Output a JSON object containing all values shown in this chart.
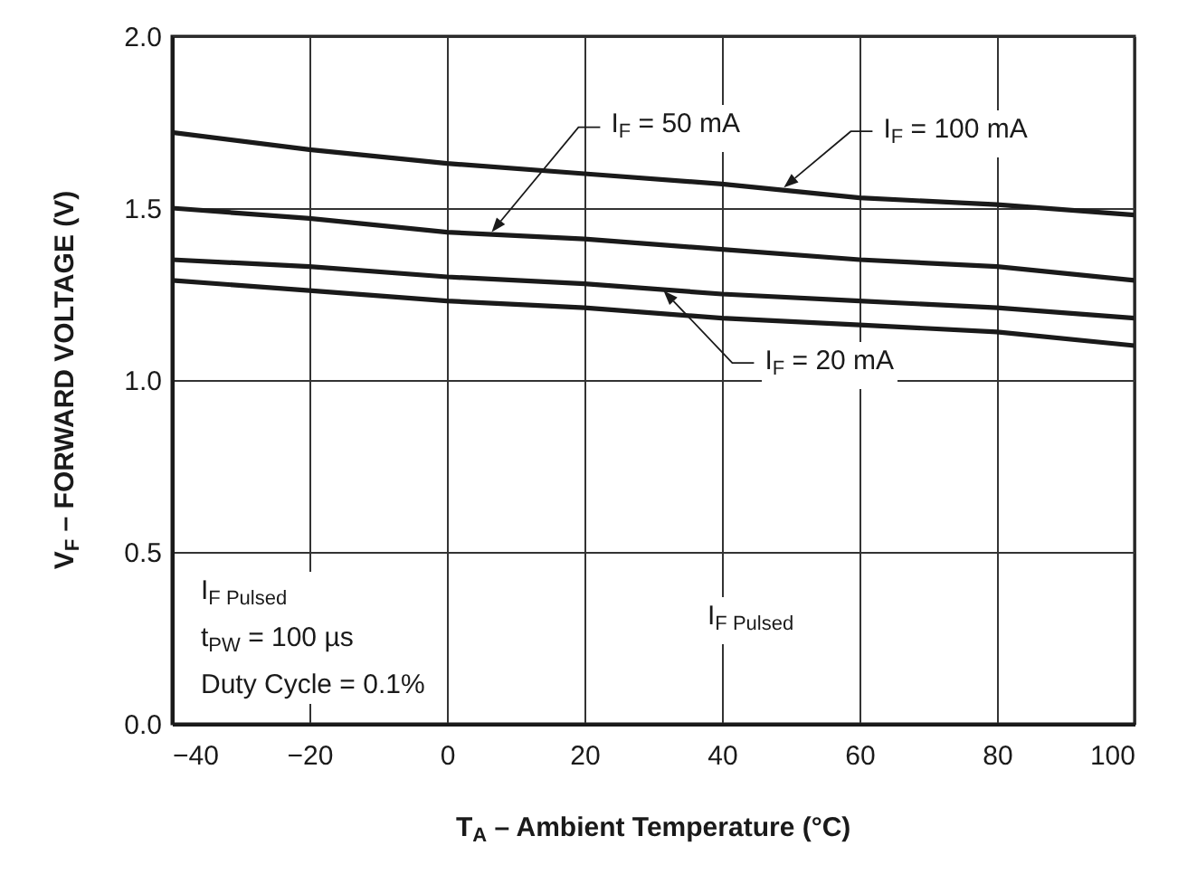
{
  "chart_data": {
    "type": "line",
    "xlabel": "T$_{A}$ – Ambient Temperature (°C)",
    "ylabel": "V$_{F}$ – FORWARD VOLTAGE (V)",
    "x": [
      -40,
      -20,
      0,
      20,
      40,
      60,
      80,
      100
    ],
    "series": [
      {
        "color": "#1a1a1a",
        "values": [
          1.72,
          1.67,
          1.63,
          1.6,
          1.57,
          1.53,
          1.51,
          1.48
        ]
      },
      {
        "color": "#1a1a1a",
        "values": [
          1.5,
          1.47,
          1.43,
          1.41,
          1.38,
          1.35,
          1.33,
          1.29
        ]
      },
      {
        "color": "#1a1a1a",
        "values": [
          1.35,
          1.33,
          1.3,
          1.28,
          1.25,
          1.23,
          1.21,
          1.18
        ]
      },
      {
        "color": "#1a1a1a",
        "values": [
          1.29,
          1.26,
          1.23,
          1.21,
          1.18,
          1.16,
          1.14,
          1.1
        ]
      }
    ],
    "xlim": [
      -40,
      100
    ],
    "xticks": [
      {
        "value": -40,
        "label": "−40"
      },
      {
        "value": -20,
        "label": "−20"
      },
      0,
      20,
      40,
      60,
      80,
      100
    ],
    "ylim": [
      0,
      2
    ],
    "yticks": [
      {
        "value": 0,
        "label": "0.0"
      },
      0.5,
      {
        "value": 1,
        "label": "1.0"
      },
      1.5,
      {
        "value": 2,
        "label": "2.0"
      }
    ],
    "grid": true,
    "line_style": "solid",
    "marker": "none",
    "annotations": [
      {
        "text": "I$_{F}$ = 100 mA",
        "x": 49,
        "y": 1.56
      },
      {
        "text": "I$_{F}$ = 50 mA",
        "x": 6.5,
        "y": 1.43
      },
      {
        "text": "I$_{F}$ = 20 mA",
        "x": 31.5,
        "y": 1.26
      },
      "I$_{F Pulsed}$\nt$_{PW}$ = 100 µs\nDuty Cycle = 0.1%",
      "I$_{F Pulsed}$"
    ]
  }
}
